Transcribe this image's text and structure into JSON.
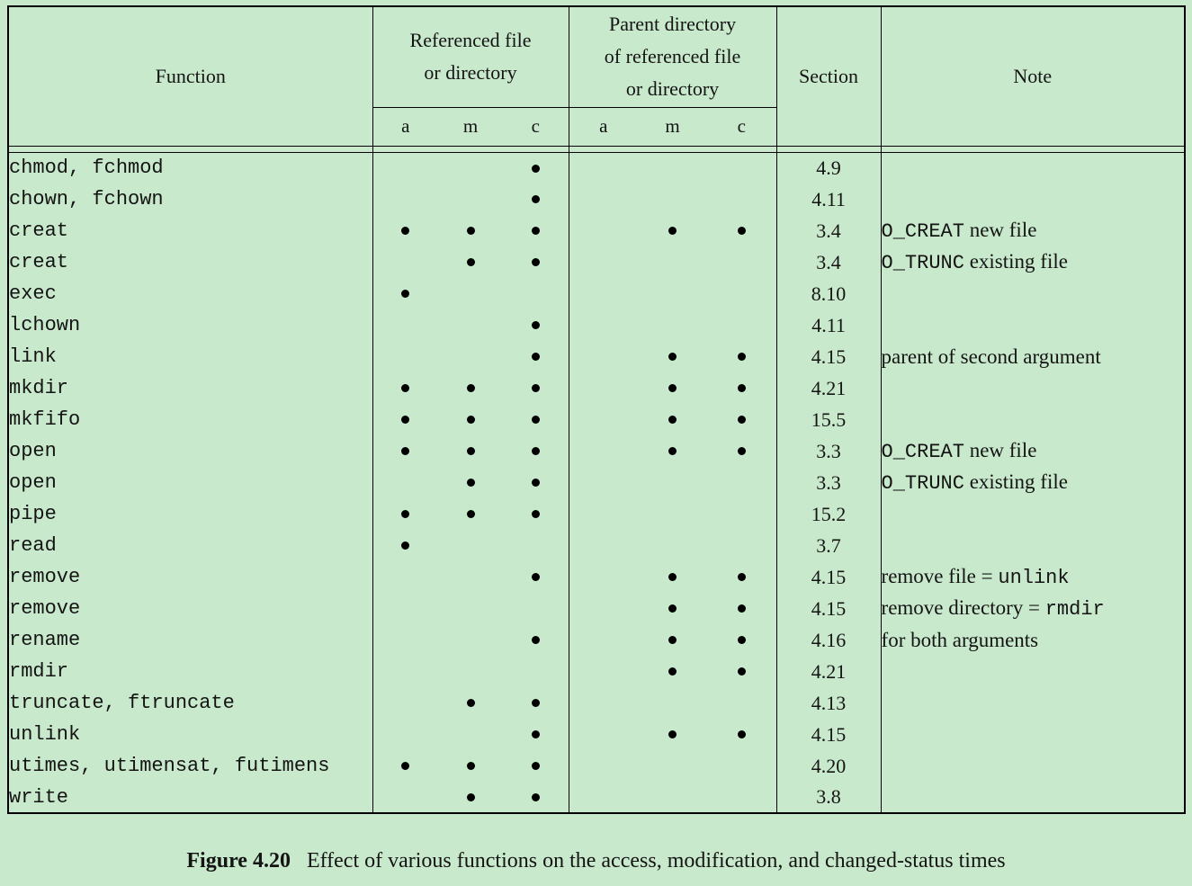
{
  "colors": {
    "page_background": "#c9e9cc",
    "rule": "#000000",
    "text": "#141414"
  },
  "bullet_glyph": "•",
  "table": {
    "header": {
      "function": "Function",
      "referenced_group": "Referenced file or directory",
      "parent_group": "Parent directory of referenced file or directory",
      "subcols": [
        "a",
        "m",
        "c"
      ],
      "section": "Section",
      "note": "Note"
    },
    "rows": [
      {
        "fn": "chmod, fchmod",
        "ref": [
          0,
          0,
          1
        ],
        "parent": [
          0,
          0,
          0
        ],
        "section": "4.9",
        "note": ""
      },
      {
        "fn": "chown, fchown",
        "ref": [
          0,
          0,
          1
        ],
        "parent": [
          0,
          0,
          0
        ],
        "section": "4.11",
        "note": ""
      },
      {
        "fn": "creat",
        "ref": [
          1,
          1,
          1
        ],
        "parent": [
          0,
          1,
          1
        ],
        "section": "3.4",
        "note": "`O_CREAT` new file"
      },
      {
        "fn": "creat",
        "ref": [
          0,
          1,
          1
        ],
        "parent": [
          0,
          0,
          0
        ],
        "section": "3.4",
        "note": "`O_TRUNC` existing file"
      },
      {
        "fn": "exec",
        "ref": [
          1,
          0,
          0
        ],
        "parent": [
          0,
          0,
          0
        ],
        "section": "8.10",
        "note": ""
      },
      {
        "fn": "lchown",
        "ref": [
          0,
          0,
          1
        ],
        "parent": [
          0,
          0,
          0
        ],
        "section": "4.11",
        "note": ""
      },
      {
        "fn": "link",
        "ref": [
          0,
          0,
          1
        ],
        "parent": [
          0,
          1,
          1
        ],
        "section": "4.15",
        "note": "parent of second argument"
      },
      {
        "fn": "mkdir",
        "ref": [
          1,
          1,
          1
        ],
        "parent": [
          0,
          1,
          1
        ],
        "section": "4.21",
        "note": ""
      },
      {
        "fn": "mkfifo",
        "ref": [
          1,
          1,
          1
        ],
        "parent": [
          0,
          1,
          1
        ],
        "section": "15.5",
        "note": ""
      },
      {
        "fn": "open",
        "ref": [
          1,
          1,
          1
        ],
        "parent": [
          0,
          1,
          1
        ],
        "section": "3.3",
        "note": "`O_CREAT` new file"
      },
      {
        "fn": "open",
        "ref": [
          0,
          1,
          1
        ],
        "parent": [
          0,
          0,
          0
        ],
        "section": "3.3",
        "note": "`O_TRUNC` existing file"
      },
      {
        "fn": "pipe",
        "ref": [
          1,
          1,
          1
        ],
        "parent": [
          0,
          0,
          0
        ],
        "section": "15.2",
        "note": ""
      },
      {
        "fn": "read",
        "ref": [
          1,
          0,
          0
        ],
        "parent": [
          0,
          0,
          0
        ],
        "section": "3.7",
        "note": ""
      },
      {
        "fn": "remove",
        "ref": [
          0,
          0,
          1
        ],
        "parent": [
          0,
          1,
          1
        ],
        "section": "4.15",
        "note": "remove file = `unlink`"
      },
      {
        "fn": "remove",
        "ref": [
          0,
          0,
          0
        ],
        "parent": [
          0,
          1,
          1
        ],
        "section": "4.15",
        "note": "remove directory = `rmdir`"
      },
      {
        "fn": "rename",
        "ref": [
          0,
          0,
          1
        ],
        "parent": [
          0,
          1,
          1
        ],
        "section": "4.16",
        "note": "for both arguments"
      },
      {
        "fn": "rmdir",
        "ref": [
          0,
          0,
          0
        ],
        "parent": [
          0,
          1,
          1
        ],
        "section": "4.21",
        "note": ""
      },
      {
        "fn": "truncate, ftruncate",
        "ref": [
          0,
          1,
          1
        ],
        "parent": [
          0,
          0,
          0
        ],
        "section": "4.13",
        "note": ""
      },
      {
        "fn": "unlink",
        "ref": [
          0,
          0,
          1
        ],
        "parent": [
          0,
          1,
          1
        ],
        "section": "4.15",
        "note": ""
      },
      {
        "fn": "utimes, utimensat, futimens",
        "ref": [
          1,
          1,
          1
        ],
        "parent": [
          0,
          0,
          0
        ],
        "section": "4.20",
        "note": ""
      },
      {
        "fn": "write",
        "ref": [
          0,
          1,
          1
        ],
        "parent": [
          0,
          0,
          0
        ],
        "section": "3.8",
        "note": ""
      }
    ]
  },
  "caption": {
    "label": "Figure 4.20",
    "text": "Effect of various functions on the access, modification, and changed-status times"
  }
}
